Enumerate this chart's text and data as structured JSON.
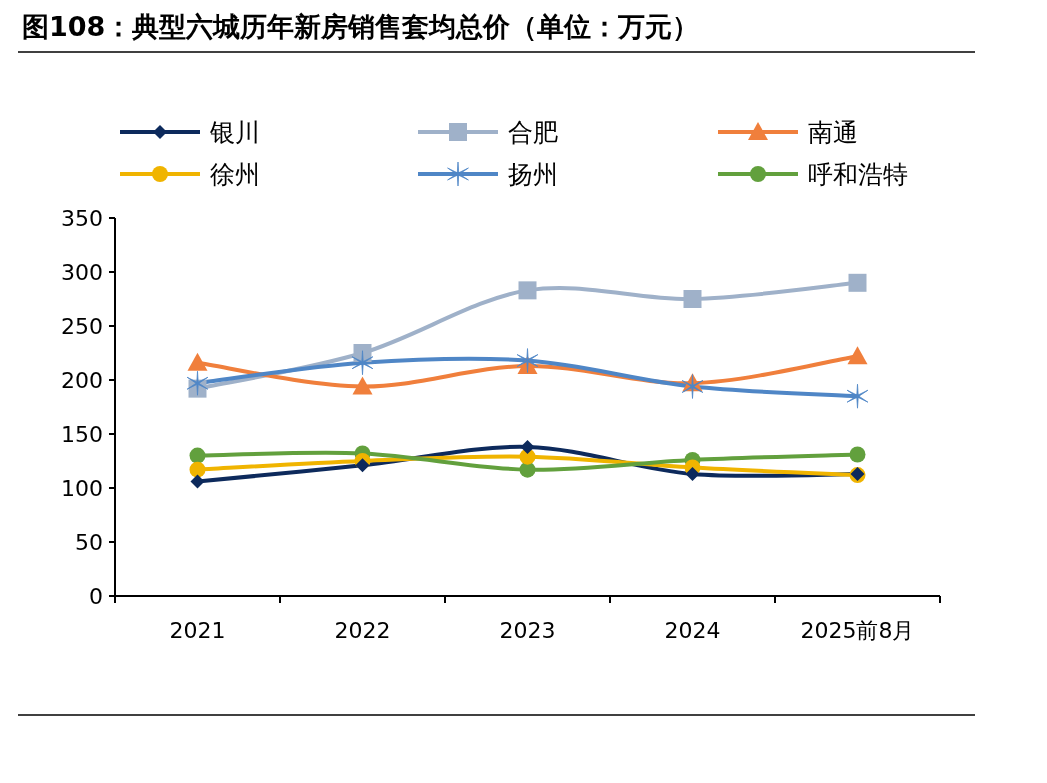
{
  "chart_data": {
    "type": "line",
    "title": "图108：典型六城历年新房销售套均总价（单位：万元）",
    "categories": [
      "2021",
      "2022",
      "2023",
      "2024",
      "2025前8月"
    ],
    "series": [
      {
        "name": "银川",
        "color": "#0d2a5c",
        "marker": "diamond",
        "values": [
          106,
          121,
          138,
          113,
          113
        ]
      },
      {
        "name": "合肥",
        "color": "#9fb1c9",
        "marker": "square",
        "values": [
          192,
          225,
          283,
          275,
          290
        ]
      },
      {
        "name": "南通",
        "color": "#f07f3c",
        "marker": "triangle",
        "values": [
          216,
          194,
          213,
          197,
          222
        ]
      },
      {
        "name": "徐州",
        "color": "#f0b400",
        "marker": "circle",
        "values": [
          117,
          125,
          129,
          119,
          112
        ]
      },
      {
        "name": "扬州",
        "color": "#4f86c6",
        "marker": "cross",
        "values": [
          197,
          216,
          218,
          194,
          185
        ]
      },
      {
        "name": "呼和浩特",
        "color": "#62a03d",
        "marker": "circle",
        "values": [
          130,
          132,
          117,
          126,
          131
        ]
      }
    ],
    "ylim": [
      0,
      350
    ],
    "yticks": [
      0,
      50,
      100,
      150,
      200,
      250,
      300,
      350
    ],
    "grid": false,
    "legend": "top",
    "line_style": "solid"
  }
}
